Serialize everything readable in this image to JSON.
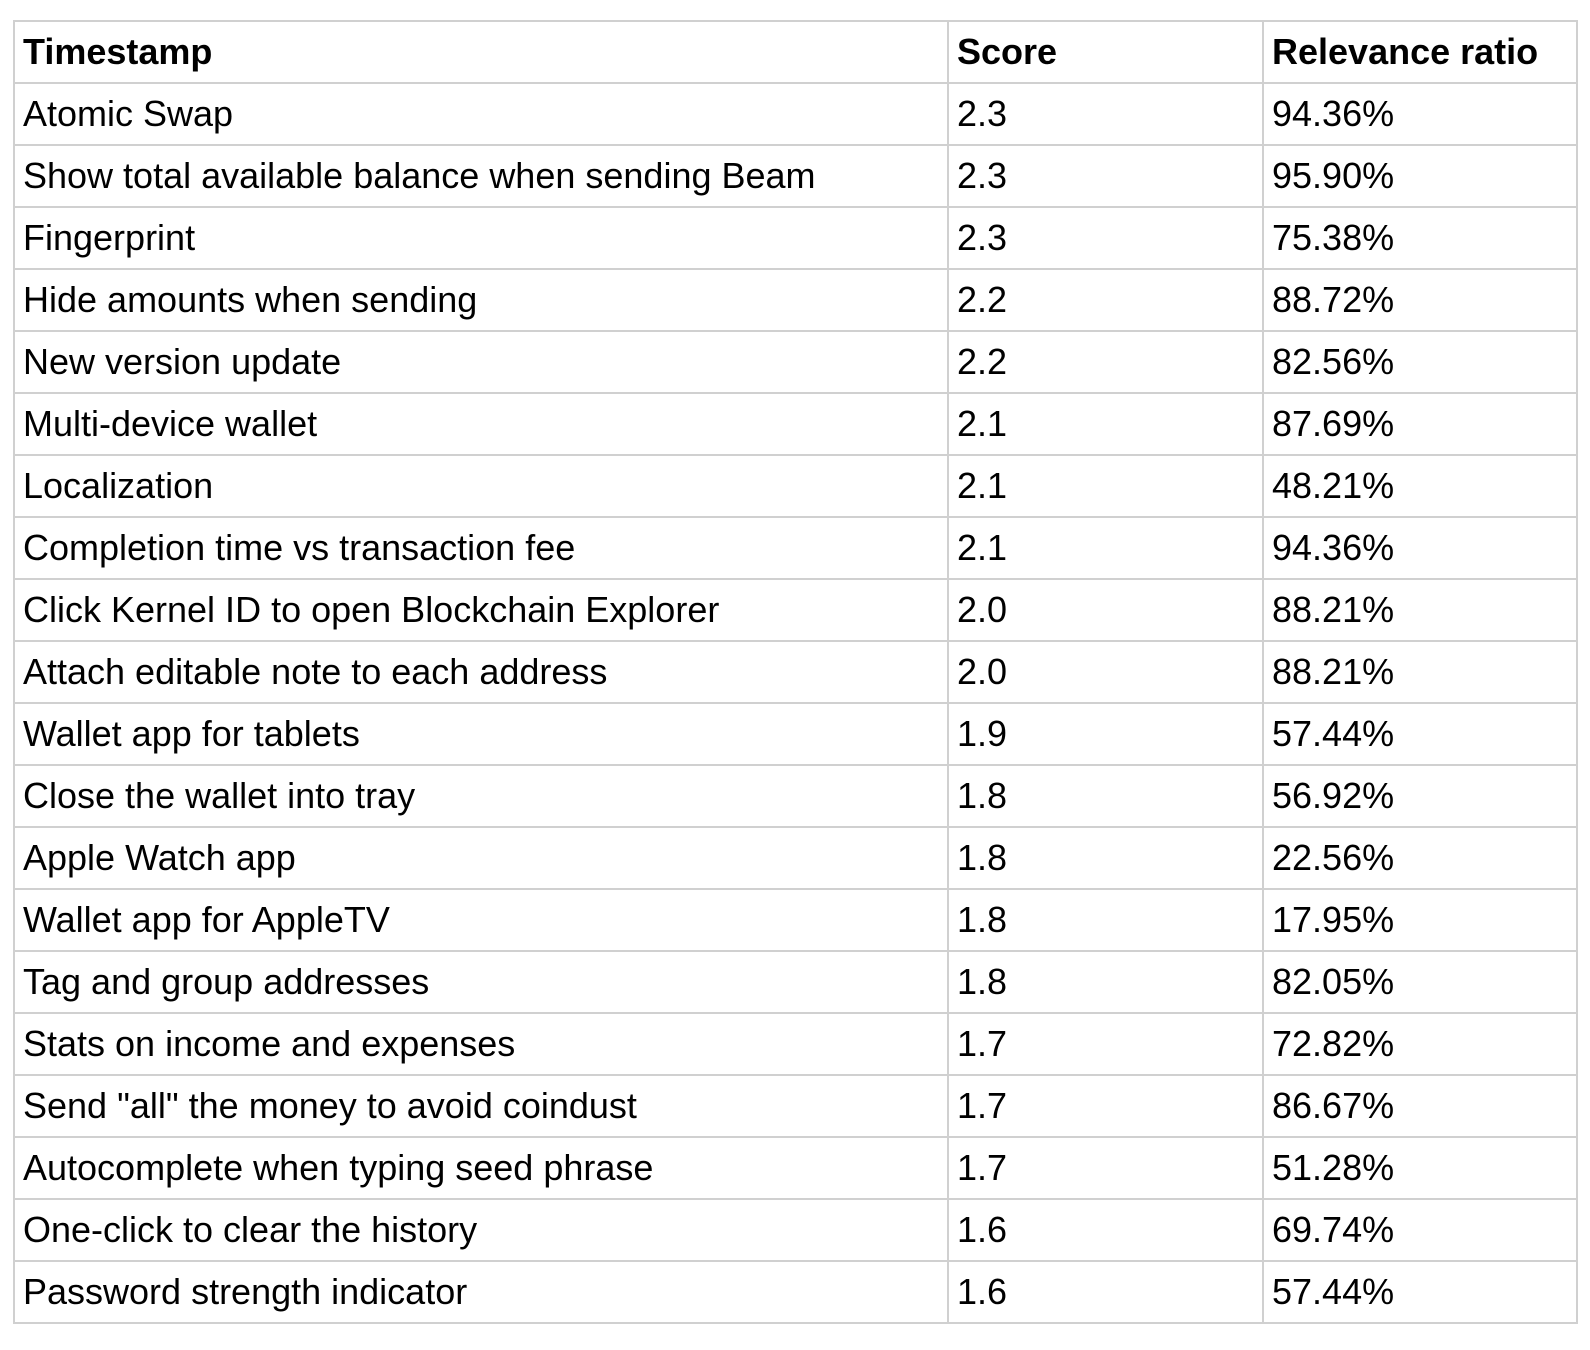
{
  "style": {
    "border_color": "#d0d0d0",
    "text_color": "#000000",
    "background_color": "#ffffff"
  },
  "chart_data": {
    "type": "table",
    "title": "",
    "columns": [
      "Timestamp",
      "Score",
      "Relevance ratio"
    ],
    "rows": [
      [
        "Atomic Swap",
        "2.3",
        "94.36%"
      ],
      [
        "Show total available balance when sending Beam",
        "2.3",
        "95.90%"
      ],
      [
        "Fingerprint",
        "2.3",
        "75.38%"
      ],
      [
        "Hide amounts when sending",
        "2.2",
        "88.72%"
      ],
      [
        "New version update",
        "2.2",
        "82.56%"
      ],
      [
        "Multi-device wallet",
        "2.1",
        "87.69%"
      ],
      [
        "Localization",
        "2.1",
        "48.21%"
      ],
      [
        "Completion time vs transaction fee",
        "2.1",
        "94.36%"
      ],
      [
        "Click Kernel ID to open Blockchain Explorer",
        "2.0",
        "88.21%"
      ],
      [
        "Attach editable note to each address",
        "2.0",
        "88.21%"
      ],
      [
        "Wallet app for tablets",
        "1.9",
        "57.44%"
      ],
      [
        "Close the wallet into tray",
        "1.8",
        "56.92%"
      ],
      [
        "Apple Watch app",
        "1.8",
        "22.56%"
      ],
      [
        "Wallet app for AppleTV",
        "1.8",
        "17.95%"
      ],
      [
        "Tag and group addresses",
        "1.8",
        "82.05%"
      ],
      [
        "Stats on income and expenses",
        "1.7",
        "72.82%"
      ],
      [
        "Send \"all\" the money to avoid coindust",
        "1.7",
        "86.67%"
      ],
      [
        "Autocomplete when typing seed phrase",
        "1.7",
        "51.28%"
      ],
      [
        "One-click to clear the history",
        "1.6",
        "69.74%"
      ],
      [
        "Password strength indicator",
        "1.6",
        "57.44%"
      ]
    ]
  }
}
